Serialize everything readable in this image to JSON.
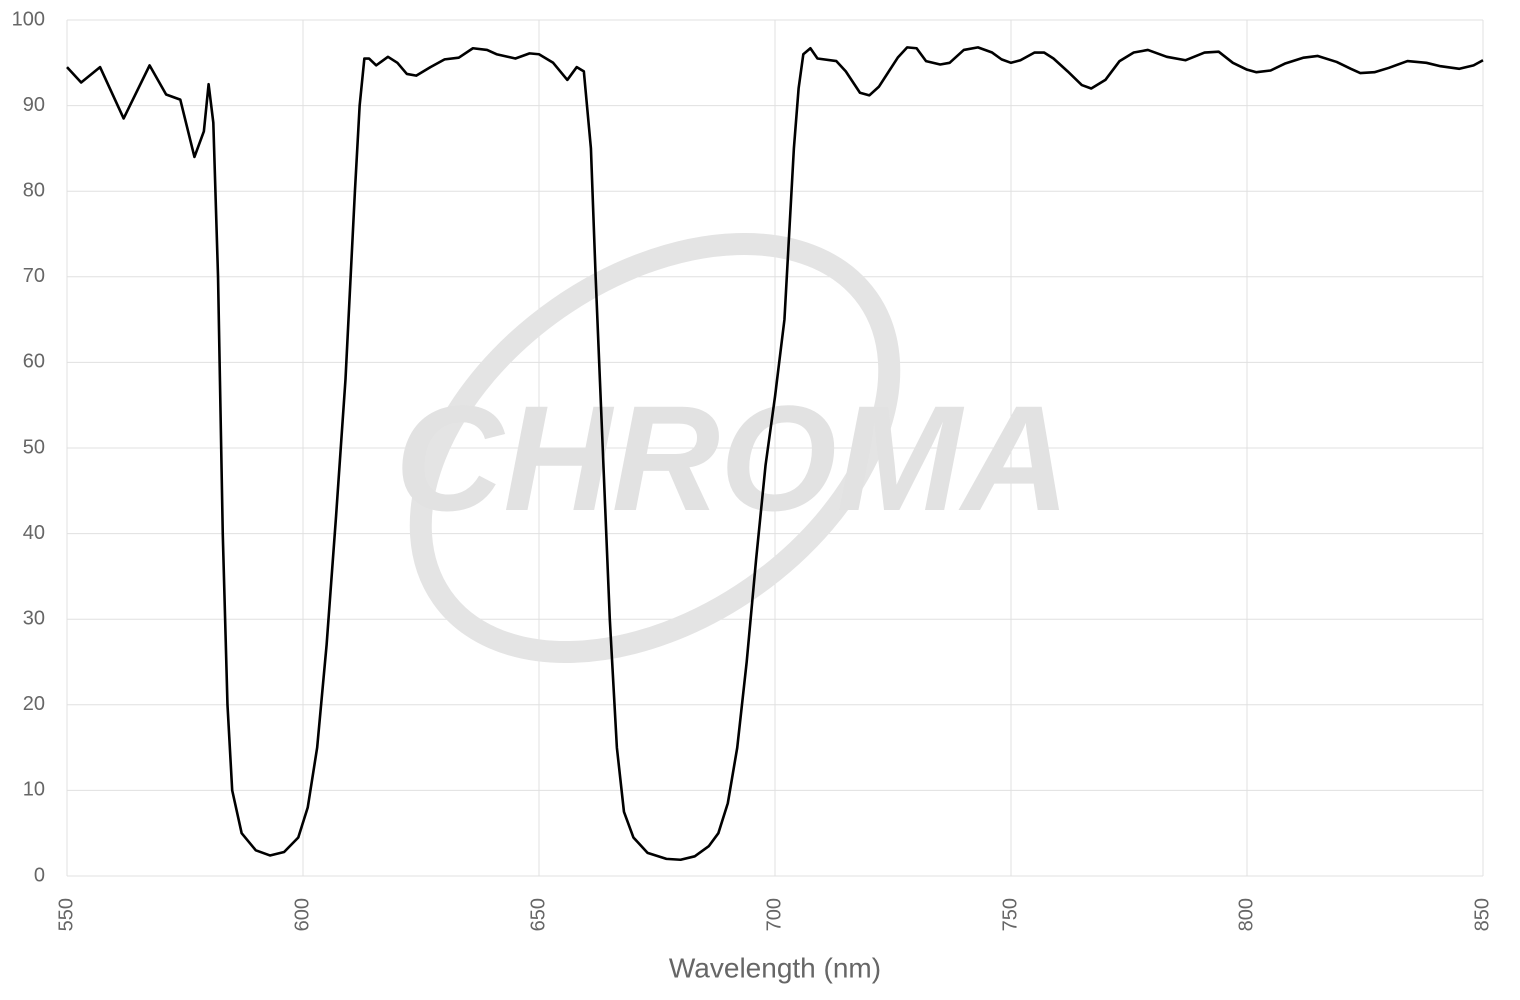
{
  "chart_data": {
    "type": "line",
    "x_label": "Wavelength (nm)",
    "watermark": "CHROMA",
    "xlim": [
      550,
      850
    ],
    "xticks": [
      550,
      600,
      650,
      700,
      750,
      800,
      850
    ],
    "ylim": [
      0,
      100
    ],
    "yticks": [
      0,
      10,
      20,
      30,
      40,
      50,
      60,
      70,
      80,
      90,
      100
    ],
    "grid": true,
    "series": [
      {
        "color": "#000000",
        "x": [
          550,
          553,
          557,
          562,
          567.5,
          571,
          574,
          577,
          579,
          580,
          581,
          582,
          583,
          584,
          585,
          587,
          590,
          593,
          596,
          599,
          601,
          603,
          605,
          607,
          609,
          611,
          612,
          613,
          614,
          615.5,
          618,
          620,
          622,
          624,
          627,
          630,
          633,
          636,
          639,
          641,
          645,
          648,
          650,
          653,
          656,
          658,
          659.5,
          661,
          662,
          663.5,
          665,
          666.5,
          668,
          670,
          673,
          677,
          680,
          683,
          686,
          688,
          690,
          692,
          694,
          696,
          698,
          700,
          702,
          703,
          704,
          705,
          706,
          707.5,
          709,
          713,
          715,
          718,
          720,
          722,
          726,
          728,
          730,
          732,
          735,
          737,
          740,
          743,
          746,
          748,
          750,
          752,
          755,
          757,
          759,
          762,
          765,
          767,
          770,
          773,
          776,
          779,
          783,
          787,
          791,
          794,
          797,
          800,
          802,
          805,
          808,
          812,
          815,
          819,
          822,
          824,
          827,
          830,
          834,
          838,
          841,
          845,
          848,
          850
        ],
        "values": [
          94.5,
          92.7,
          94.5,
          88.5,
          94.7,
          91.3,
          90.7,
          84,
          87,
          92.5,
          88,
          70,
          40,
          20,
          10,
          5,
          3,
          2.4,
          2.8,
          4.5,
          8,
          15,
          27,
          42,
          58,
          80,
          90,
          95.5,
          95.5,
          94.7,
          95.7,
          95,
          93.7,
          93.5,
          94.5,
          95.4,
          95.6,
          96.7,
          96.5,
          96,
          95.5,
          96.1,
          96,
          95,
          93,
          94.5,
          94,
          85,
          70,
          50,
          30,
          15,
          7.5,
          4.5,
          2.7,
          2.0,
          1.9,
          2.3,
          3.5,
          5,
          8.5,
          15,
          25,
          37,
          48,
          56,
          65,
          75,
          85,
          92,
          96,
          96.7,
          95.5,
          95.2,
          94,
          91.5,
          91.2,
          92.2,
          95.6,
          96.8,
          96.7,
          95.2,
          94.8,
          95,
          96.5,
          96.8,
          96.2,
          95.4,
          95,
          95.3,
          96.2,
          96.2,
          95.5,
          94,
          92.4,
          92,
          93,
          95.2,
          96.2,
          96.5,
          95.7,
          95.3,
          96.2,
          96.3,
          95,
          94.2,
          93.9,
          94.1,
          94.9,
          95.6,
          95.8,
          95.1,
          94.3,
          93.8,
          93.9,
          94.4,
          95.2,
          95,
          94.6,
          94.3,
          94.7,
          95.3
        ]
      }
    ]
  }
}
